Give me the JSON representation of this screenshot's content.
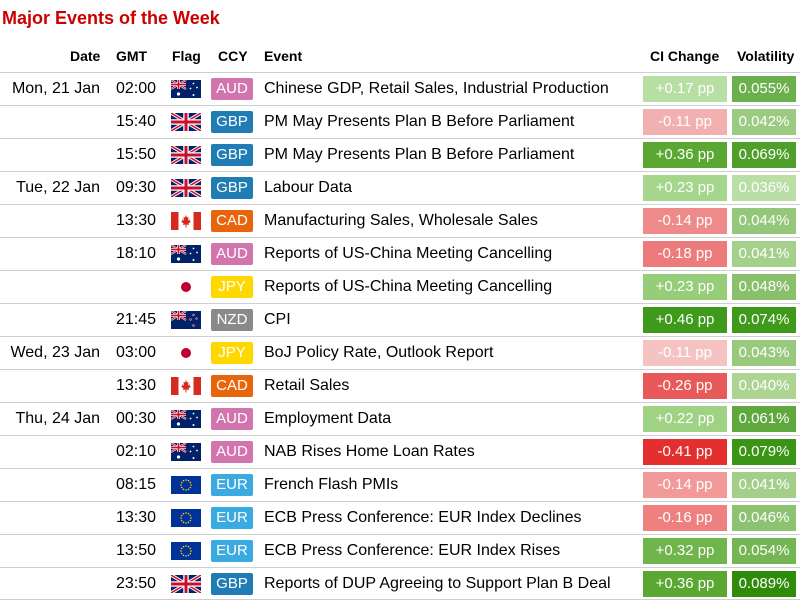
{
  "title": "Major Events of the Week",
  "headers": {
    "date": "Date",
    "gmt": "GMT",
    "flag": "Flag",
    "ccy": "CCY",
    "event": "Event",
    "ci_change": "CI Change",
    "volatility": "Volatility"
  },
  "ccy_colors": {
    "AUD": "#d274ad",
    "GBP": "#1f7db4",
    "CAD": "#e8650d",
    "JPY": "#ffd800",
    "NZD": "#8a8a8a",
    "EUR": "#3aaae0"
  },
  "rows": [
    {
      "date": "Mon, 21 Jan",
      "gmt": "02:00",
      "flag": "australia",
      "ccy": "AUD",
      "event": "Chinese GDP, Retail Sales, Industrial Production",
      "ci_change": "+0.17 pp",
      "ci_color": "#b7dfa3",
      "volatility": "0.055%",
      "vol_color": "#6ab04c"
    },
    {
      "date": "",
      "gmt": "15:40",
      "flag": "uk",
      "ccy": "GBP",
      "event": "PM May Presents Plan B Before Parliament",
      "ci_change": "-0.11 pp",
      "ci_color": "#f3b0b0",
      "volatility": "0.042%",
      "vol_color": "#9bcb80"
    },
    {
      "date": "",
      "gmt": "15:50",
      "flag": "uk",
      "ccy": "GBP",
      "event": "PM May Presents Plan B Before Parliament",
      "ci_change": "+0.36 pp",
      "ci_color": "#5aa832",
      "volatility": "0.069%",
      "vol_color": "#4f9f2a"
    },
    {
      "date": "Tue, 22 Jan",
      "gmt": "09:30",
      "flag": "uk",
      "ccy": "GBP",
      "event": "Labour Data",
      "ci_change": "+0.23 pp",
      "ci_color": "#a5d68b",
      "volatility": "0.036%",
      "vol_color": "#b9dfa6"
    },
    {
      "date": "",
      "gmt": "13:30",
      "flag": "canada",
      "ccy": "CAD",
      "event": "Manufacturing Sales, Wholesale Sales",
      "ci_change": "-0.14 pp",
      "ci_color": "#ef8a8a",
      "volatility": "0.044%",
      "vol_color": "#95c77a"
    },
    {
      "date": "",
      "gmt": "18:10",
      "flag": "australia",
      "ccy": "AUD",
      "event": "Reports of US-China Meeting Cancelling",
      "ci_change": "-0.18 pp",
      "ci_color": "#ee7b7b",
      "volatility": "0.041%",
      "vol_color": "#a5d08c"
    },
    {
      "date": "",
      "gmt": "",
      "flag": "japan",
      "ccy": "JPY",
      "event": "Reports of US-China Meeting Cancelling",
      "ci_change": "+0.23 pp",
      "ci_color": "#96cd79",
      "volatility": "0.048%",
      "vol_color": "#89c06c"
    },
    {
      "date": "",
      "gmt": "21:45",
      "flag": "newzealand",
      "ccy": "NZD",
      "event": "CPI",
      "ci_change": "+0.46 pp",
      "ci_color": "#3f9a1b",
      "volatility": "0.074%",
      "vol_color": "#3f9a1b"
    },
    {
      "date": "Wed, 23 Jan",
      "gmt": "03:00",
      "flag": "japan",
      "ccy": "JPY",
      "event": "BoJ Policy Rate, Outlook Report",
      "ci_change": "-0.11 pp",
      "ci_color": "#f6c3c3",
      "volatility": "0.043%",
      "vol_color": "#98c97d"
    },
    {
      "date": "",
      "gmt": "13:30",
      "flag": "canada",
      "ccy": "CAD",
      "event": "Retail Sales",
      "ci_change": "-0.26 pp",
      "ci_color": "#e85a5a",
      "volatility": "0.040%",
      "vol_color": "#add493"
    },
    {
      "date": "Thu, 24 Jan",
      "gmt": "00:30",
      "flag": "australia",
      "ccy": "AUD",
      "event": "Employment Data",
      "ci_change": "+0.22 pp",
      "ci_color": "#9fd383",
      "volatility": "0.061%",
      "vol_color": "#5ea83e"
    },
    {
      "date": "",
      "gmt": "02:10",
      "flag": "australia",
      "ccy": "AUD",
      "event": "NAB Rises Home Loan Rates",
      "ci_change": "-0.41 pp",
      "ci_color": "#e42f2f",
      "volatility": "0.079%",
      "vol_color": "#3a9416"
    },
    {
      "date": "",
      "gmt": "08:15",
      "flag": "eu",
      "ccy": "EUR",
      "event": "French Flash PMIs",
      "ci_change": "-0.14 pp",
      "ci_color": "#f29a9a",
      "volatility": "0.041%",
      "vol_color": "#a3cf8a"
    },
    {
      "date": "",
      "gmt": "13:30",
      "flag": "eu",
      "ccy": "EUR",
      "event": "ECB Press Conference: EUR Index Declines",
      "ci_change": "-0.16 pp",
      "ci_color": "#ee8080",
      "volatility": "0.046%",
      "vol_color": "#8cc271"
    },
    {
      "date": "",
      "gmt": "13:50",
      "flag": "eu",
      "ccy": "EUR",
      "event": "ECB Press Conference: EUR Index Rises",
      "ci_change": "+0.32 pp",
      "ci_color": "#6fb54b",
      "volatility": "0.054%",
      "vol_color": "#74b554"
    },
    {
      "date": "",
      "gmt": "23:50",
      "flag": "uk",
      "ccy": "GBP",
      "event": "Reports of DUP Agreeing to Support Plan B Deal",
      "ci_change": "+0.36 pp",
      "ci_color": "#5aa832",
      "volatility": "0.089%",
      "vol_color": "#2f8c0a"
    }
  ]
}
